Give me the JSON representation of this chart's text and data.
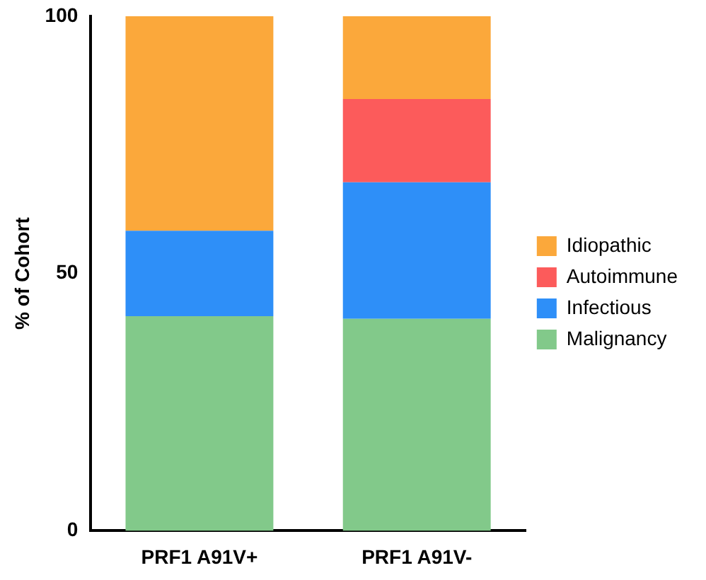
{
  "chart_data": {
    "type": "bar",
    "stacked": true,
    "ylabel": "% of Cohort",
    "categories": [
      "PRF1 A91V+",
      "PRF1 A91V-"
    ],
    "series": [
      {
        "name": "Malignancy",
        "color": "#82c98a",
        "values": [
          41.7,
          41.2
        ]
      },
      {
        "name": "Infectious",
        "color": "#2e8ff8",
        "values": [
          16.6,
          26.5
        ]
      },
      {
        "name": "Autoimmune",
        "color": "#fc5b5b",
        "values": [
          0,
          16.2
        ]
      },
      {
        "name": "Idiopathic",
        "color": "#fba83b",
        "values": [
          41.7,
          16.1
        ]
      }
    ],
    "ylim": [
      0,
      100
    ],
    "yticks": [
      0,
      50,
      100
    ],
    "grid": false,
    "legend": "right"
  }
}
